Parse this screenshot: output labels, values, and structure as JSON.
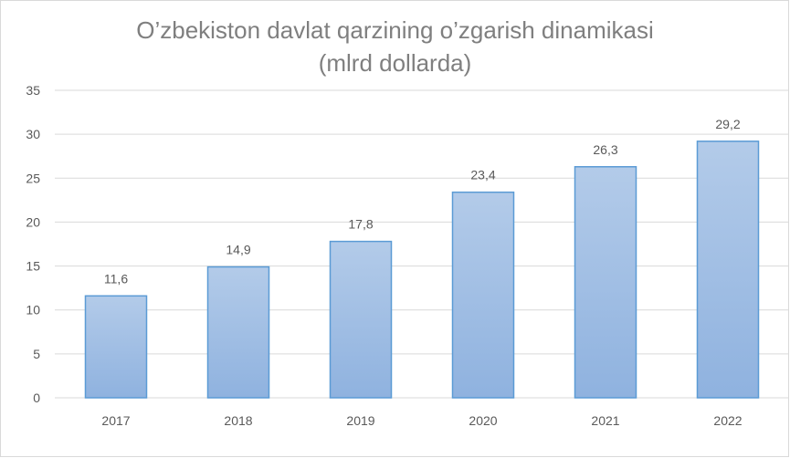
{
  "chart_data": {
    "type": "bar",
    "title": "O’zbekiston davlat qarzining o’zgarish dinamikasi",
    "subtitle": "(mlrd dollarda)",
    "categories": [
      "2017",
      "2018",
      "2019",
      "2020",
      "2021",
      "2022"
    ],
    "values": [
      11.6,
      14.9,
      17.8,
      23.4,
      26.3,
      29.2
    ],
    "data_labels": [
      "11,6",
      "14,9",
      "17,8",
      "23,4",
      "26,3",
      "29,2"
    ],
    "y_ticks": [
      "0",
      "5",
      "10",
      "15",
      "20",
      "25",
      "30",
      "35"
    ],
    "ylim": [
      0,
      35
    ],
    "xlabel": "",
    "ylabel": "",
    "grid": true,
    "legend": "none",
    "colors": {
      "bar_top": "#b3cbe9",
      "bar_bottom": "#8fb2df",
      "bar_border": "#5b9bd5",
      "grid": "#d9d9d9",
      "text": "#595959",
      "title": "#7f7f7f"
    }
  }
}
